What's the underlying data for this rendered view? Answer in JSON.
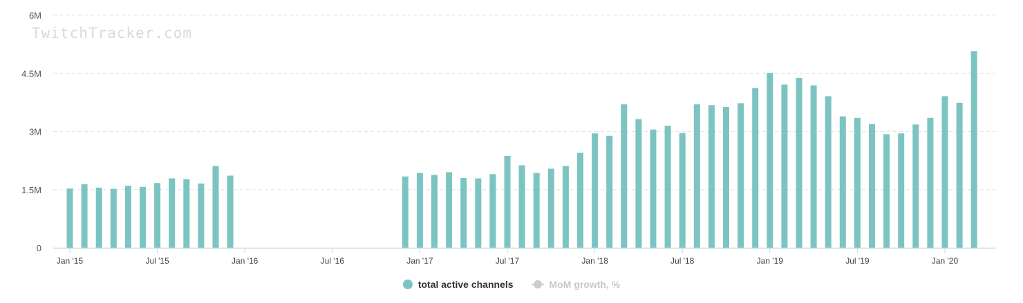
{
  "chart_data": {
    "type": "bar",
    "watermark": "TwitchTracker.com",
    "y_ticks": [
      "0",
      "1.5M",
      "3M",
      "4.5M",
      "6M"
    ],
    "ylim": [
      0,
      6000000
    ],
    "x_tick_labels": [
      "Jan '15",
      "Jul '15",
      "Jan '16",
      "Jul '16",
      "Jan '17",
      "Jul '17",
      "Jan '18",
      "Jul '18",
      "Jan '19",
      "Jul '19",
      "Jan '20"
    ],
    "x_tick_month_index": [
      0,
      6,
      12,
      18,
      24,
      30,
      36,
      42,
      48,
      54,
      60
    ],
    "start_month": "2015-01",
    "grid": true,
    "legend_position": "bottom-center",
    "series": [
      {
        "name": "total active channels",
        "color": "#7cc4c1",
        "values": [
          1530000,
          1640000,
          1550000,
          1520000,
          1600000,
          1570000,
          1670000,
          1790000,
          1770000,
          1660000,
          2110000,
          1860000,
          null,
          null,
          null,
          null,
          null,
          null,
          null,
          null,
          null,
          null,
          null,
          1840000,
          1930000,
          1880000,
          1950000,
          1800000,
          1790000,
          1900000,
          2370000,
          2130000,
          1930000,
          2040000,
          2110000,
          2450000,
          2950000,
          2890000,
          3700000,
          3320000,
          3050000,
          3150000,
          2960000,
          3700000,
          3680000,
          3630000,
          3730000,
          4120000,
          4510000,
          4210000,
          4380000,
          4190000,
          3910000,
          3390000,
          3350000,
          3190000,
          2930000,
          2950000,
          3180000,
          3350000,
          3910000,
          3740000,
          5070000
        ]
      },
      {
        "name": "MoM growth, %",
        "color": "#cccccc",
        "visible": false
      }
    ]
  }
}
